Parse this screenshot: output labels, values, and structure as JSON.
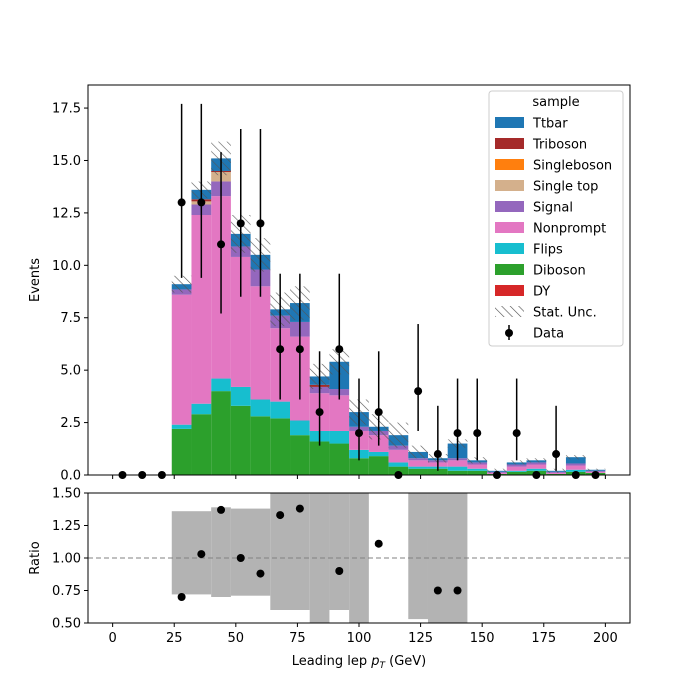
{
  "colors": {
    "DY": "#d62728",
    "Diboson": "#2ca02c",
    "Flips": "#17becf",
    "Nonprompt": "#e377c2",
    "Signal": "#9467bd",
    "Single top": "#d4b08c",
    "Singleboson": "#ff7f0e",
    "Triboson": "#a52a2a",
    "Ttbar": "#1f77b4",
    "ratio_band": "#b3b3b3",
    "data": "#000000"
  },
  "chart_data": [
    {
      "type": "bar",
      "stacked": true,
      "ylabel": "Events",
      "ylim": [
        0,
        18.6
      ],
      "yticks": [
        0.0,
        2.5,
        5.0,
        7.5,
        10.0,
        12.5,
        15.0,
        17.5
      ],
      "ytick_labels": [
        "0.0",
        "2.5",
        "5.0",
        "7.5",
        "10.0",
        "12.5",
        "15.0",
        "17.5"
      ],
      "xlim": [
        -10,
        210
      ],
      "bin_edges": [
        0,
        8,
        16,
        24,
        32,
        40,
        48,
        56,
        64,
        72,
        80,
        88,
        96,
        104,
        112,
        120,
        128,
        136,
        144,
        152,
        160,
        168,
        176,
        184,
        192,
        200
      ],
      "stack_order": [
        "DY",
        "Diboson",
        "Flips",
        "Nonprompt",
        "Signal",
        "Single top",
        "Singleboson",
        "Triboson",
        "Ttbar"
      ],
      "series": [
        {
          "name": "DY",
          "values": [
            0,
            0,
            0,
            0,
            0,
            0,
            0,
            0,
            0,
            0,
            0,
            0,
            0,
            0,
            0,
            0,
            0,
            0,
            0,
            0,
            0,
            0,
            0,
            0,
            0
          ]
        },
        {
          "name": "Diboson",
          "values": [
            0,
            0,
            0,
            2.2,
            2.9,
            4.0,
            3.3,
            2.8,
            2.7,
            1.9,
            1.6,
            1.5,
            0.8,
            0.9,
            0.4,
            0.3,
            0.3,
            0.2,
            0.2,
            0.05,
            0.15,
            0.2,
            0.05,
            0.15,
            0.1
          ]
        },
        {
          "name": "Flips",
          "values": [
            0,
            0,
            0,
            0.2,
            0.5,
            0.6,
            0.9,
            0.8,
            0.8,
            0.7,
            0.5,
            0.6,
            0.4,
            0.2,
            0.2,
            0.1,
            0.1,
            0.2,
            0.1,
            0.0,
            0.05,
            0.1,
            0,
            0.1,
            0
          ]
        },
        {
          "name": "Nonprompt",
          "values": [
            0,
            0,
            0,
            6.2,
            9.0,
            8.7,
            6.2,
            5.4,
            3.5,
            4.0,
            1.8,
            1.7,
            0.9,
            0.8,
            0.6,
            0.3,
            0.2,
            0.3,
            0.2,
            0.05,
            0.2,
            0.2,
            0.05,
            0.2,
            0.05
          ]
        },
        {
          "name": "Signal",
          "values": [
            0,
            0,
            0,
            0.25,
            0.5,
            0.7,
            0.5,
            0.8,
            0.6,
            0.7,
            0.3,
            0.3,
            0.2,
            0.2,
            0.2,
            0.1,
            0.1,
            0.1,
            0.1,
            0.05,
            0.1,
            0.1,
            0.05,
            0.1,
            0.05
          ]
        },
        {
          "name": "Single top",
          "values": [
            0,
            0,
            0,
            0,
            0.15,
            0.45,
            0,
            0,
            0,
            0,
            0,
            0,
            0,
            0,
            0,
            0,
            0,
            0,
            0,
            0,
            0,
            0,
            0,
            0,
            0
          ]
        },
        {
          "name": "Singleboson",
          "values": [
            0,
            0,
            0,
            0,
            0,
            0,
            0,
            0,
            0,
            0,
            0,
            0,
            0,
            0,
            0,
            0,
            0,
            0,
            0,
            0,
            0,
            0,
            0,
            0,
            0
          ]
        },
        {
          "name": "Triboson",
          "values": [
            0,
            0,
            0,
            0,
            0.1,
            0.05,
            0,
            0,
            0,
            0,
            0.1,
            0,
            0,
            0,
            0,
            0,
            0,
            0,
            0,
            0,
            0,
            0,
            0,
            0,
            0
          ]
        },
        {
          "name": "Ttbar",
          "values": [
            0,
            0,
            0,
            0.25,
            0.45,
            0.6,
            0.6,
            0.7,
            0.3,
            0.9,
            0.4,
            1.3,
            0.7,
            0.2,
            0.5,
            0.3,
            0.1,
            0.7,
            0.1,
            0.05,
            0.1,
            0.1,
            0.05,
            0.3,
            0.05
          ]
        }
      ],
      "stat_unc": [
        0,
        0,
        0,
        0.4,
        0.4,
        0.8,
        0.9,
        0.8,
        0.8,
        0.8,
        0.6,
        0.6,
        0.6,
        0.6,
        0.6,
        0.3,
        0.2,
        0.2,
        0.15,
        0.1,
        0.1,
        0.1,
        0.1,
        0.1,
        0.05
      ],
      "data": {
        "name": "Data",
        "x": [
          4,
          12,
          20,
          28,
          36,
          44,
          52,
          60,
          68,
          76,
          84,
          92,
          100,
          108,
          116,
          124,
          132,
          140,
          148,
          156,
          164,
          172,
          180,
          188,
          196
        ],
        "y": [
          0,
          0,
          0,
          13,
          13,
          11,
          12,
          12,
          6,
          6,
          3,
          6,
          2,
          3,
          0,
          4,
          1,
          2,
          2,
          0,
          2,
          0,
          1,
          0,
          0
        ],
        "err_lo": [
          0,
          0,
          0,
          3.6,
          3.6,
          3.3,
          3.5,
          3.5,
          2.4,
          2.4,
          1.6,
          2.4,
          1.3,
          1.6,
          0,
          1.9,
          0.8,
          1.3,
          1.3,
          0,
          1.3,
          0,
          0.8,
          0,
          0
        ],
        "err_hi": [
          0,
          0,
          0,
          4.7,
          4.7,
          4.4,
          4.5,
          4.5,
          3.6,
          3.6,
          2.9,
          3.6,
          2.6,
          2.9,
          0,
          3.2,
          2.3,
          2.6,
          2.6,
          0,
          2.6,
          0,
          2.3,
          0,
          0
        ]
      },
      "legend": {
        "title": "sample",
        "placement": "upper right",
        "entries": [
          "Ttbar",
          "Triboson",
          "Singleboson",
          "Single top",
          "Signal",
          "Nonprompt",
          "Flips",
          "Diboson",
          "DY",
          "Stat. Unc.",
          "Data"
        ]
      }
    },
    {
      "type": "scatter",
      "ylabel": "Ratio",
      "xlabel_prefix": "Leading lep ",
      "xlabel_var": "p",
      "xlabel_sub": "T",
      "xlabel_suffix": " (GeV)",
      "ylim": [
        0.5,
        1.5
      ],
      "yticks": [
        0.5,
        0.75,
        1.0,
        1.25,
        1.5
      ],
      "ytick_labels": [
        "0.50",
        "0.75",
        "1.00",
        "1.25",
        "1.50"
      ],
      "xlim": [
        -10,
        210
      ],
      "xticks": [
        0,
        25,
        50,
        75,
        100,
        125,
        150,
        175,
        200
      ],
      "xtick_labels": [
        "0",
        "25",
        "50",
        "75",
        "100",
        "125",
        "150",
        "175",
        "200"
      ],
      "reference_line": 1.0,
      "band": [
        {
          "x0": 24,
          "x1": 40,
          "lo": 0.72,
          "hi": 1.36
        },
        {
          "x0": 40,
          "x1": 48,
          "lo": 0.7,
          "hi": 1.39
        },
        {
          "x0": 48,
          "x1": 64,
          "lo": 0.71,
          "hi": 1.38
        },
        {
          "x0": 64,
          "x1": 80,
          "lo": 0.6,
          "hi": 1.5
        },
        {
          "x0": 80,
          "x1": 88,
          "lo": 0.5,
          "hi": 1.5
        },
        {
          "x0": 88,
          "x1": 96,
          "lo": 0.6,
          "hi": 1.5
        },
        {
          "x0": 96,
          "x1": 104,
          "lo": 0.5,
          "hi": 1.5
        },
        {
          "x0": 120,
          "x1": 128,
          "lo": 0.53,
          "hi": 1.5
        },
        {
          "x0": 128,
          "x1": 144,
          "lo": 0.5,
          "hi": 1.5
        }
      ],
      "points": {
        "x": [
          28,
          36,
          44,
          52,
          60,
          68,
          76,
          92,
          108,
          132,
          140
        ],
        "y": [
          0.7,
          1.03,
          1.37,
          1.0,
          0.88,
          1.33,
          1.38,
          0.9,
          1.11,
          0.75,
          0.75
        ]
      }
    }
  ]
}
